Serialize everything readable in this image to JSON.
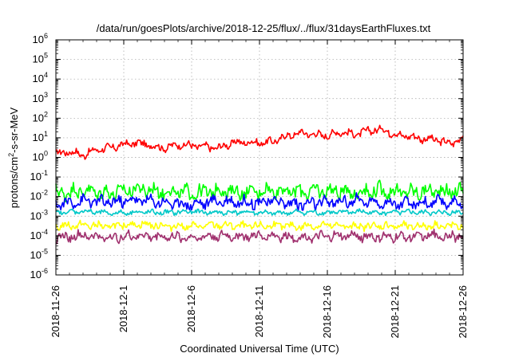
{
  "chart_data": {
    "type": "line",
    "title": "/data/run/goesPlots/archive/2018-12-25/flux/../flux/31daysEarthFluxes.txt",
    "xlabel": "Coordinated Universal Time (UTC)",
    "ylabel": "protons/cm²-s-sr-MeV",
    "ylabel_parts": [
      "protons/cm",
      "2",
      "-s-sr-MeV"
    ],
    "yscale": "log",
    "ylim_exponents": [
      -6,
      6
    ],
    "y_tick_base": "10",
    "y_tick_exponents": [
      "-6",
      "-5",
      "-4",
      "-3",
      "-2",
      "-1",
      "0",
      "1",
      "2",
      "3",
      "4",
      "5",
      "6"
    ],
    "x_tick_labels": [
      "2018-11-26",
      "2018-12-1",
      "2018-12-6",
      "2018-12-11",
      "2018-12-16",
      "2018-12-21",
      "2018-12-26"
    ],
    "x_range_days": [
      0,
      30
    ],
    "grid": true,
    "legend": "none",
    "series": [
      {
        "color": "#ff0000",
        "x": [
          0,
          1,
          2,
          3,
          4,
          5,
          6,
          7,
          8,
          9,
          10,
          11,
          12,
          13,
          14,
          15,
          16,
          17,
          18,
          19,
          20,
          21,
          22,
          23,
          24,
          25,
          26,
          27,
          28,
          29,
          30
        ],
        "values": [
          1.5,
          2,
          1.3,
          2.5,
          3,
          4.5,
          5.5,
          4,
          3,
          4.5,
          4,
          3.5,
          3,
          5.5,
          6,
          5.5,
          6.5,
          12,
          18,
          15,
          13,
          20,
          15,
          22,
          28,
          15,
          12,
          9,
          8,
          5,
          10
        ]
      },
      {
        "color": "#00ff00",
        "x": [
          0,
          2,
          4,
          6,
          8,
          10,
          12,
          14,
          16,
          18,
          20,
          22,
          24,
          26,
          28,
          30
        ],
        "values": [
          0.015,
          0.02,
          0.015,
          0.025,
          0.018,
          0.015,
          0.02,
          0.016,
          0.022,
          0.018,
          0.02,
          0.017,
          0.02,
          0.016,
          0.02,
          0.018
        ]
      },
      {
        "color": "#00c8c8",
        "x": [
          0,
          2,
          4,
          6,
          8,
          10,
          12,
          14,
          16,
          18,
          20,
          22,
          24,
          26,
          28,
          30
        ],
        "values": [
          0.0015,
          0.0018,
          0.0014,
          0.0016,
          0.0015,
          0.0017,
          0.0015,
          0.0016,
          0.0014,
          0.0016,
          0.0015,
          0.0017,
          0.0015,
          0.0016,
          0.0015,
          0.0016
        ]
      },
      {
        "color": "#0000ff",
        "x": [
          0,
          2,
          4,
          6,
          8,
          10,
          12,
          14,
          16,
          18,
          20,
          22,
          24,
          26,
          28,
          30
        ],
        "values": [
          0.004,
          0.006,
          0.005,
          0.007,
          0.005,
          0.004,
          0.006,
          0.005,
          0.006,
          0.004,
          0.005,
          0.006,
          0.005,
          0.004,
          0.005,
          0.005
        ]
      },
      {
        "color": "#ffff00",
        "x": [
          0,
          2,
          4,
          6,
          8,
          10,
          12,
          14,
          16,
          18,
          20,
          22,
          24,
          26,
          28,
          30
        ],
        "values": [
          0.0003,
          0.00035,
          0.0003,
          0.0004,
          0.00032,
          0.0003,
          0.00035,
          0.0003,
          0.00033,
          0.0003,
          0.00034,
          0.0003,
          0.00032,
          0.0003,
          0.00033,
          0.0003
        ]
      },
      {
        "color": "#a0306e",
        "x": [
          0,
          2,
          4,
          6,
          8,
          10,
          12,
          14,
          16,
          18,
          20,
          22,
          24,
          26,
          28,
          30
        ],
        "values": [
          8e-05,
          0.0001,
          8e-05,
          0.0001,
          9e-05,
          8e-05,
          0.0001,
          9e-05,
          0.0001,
          8e-05,
          9e-05,
          0.0001,
          8e-05,
          9e-05,
          0.0001,
          9e-05
        ]
      }
    ]
  }
}
